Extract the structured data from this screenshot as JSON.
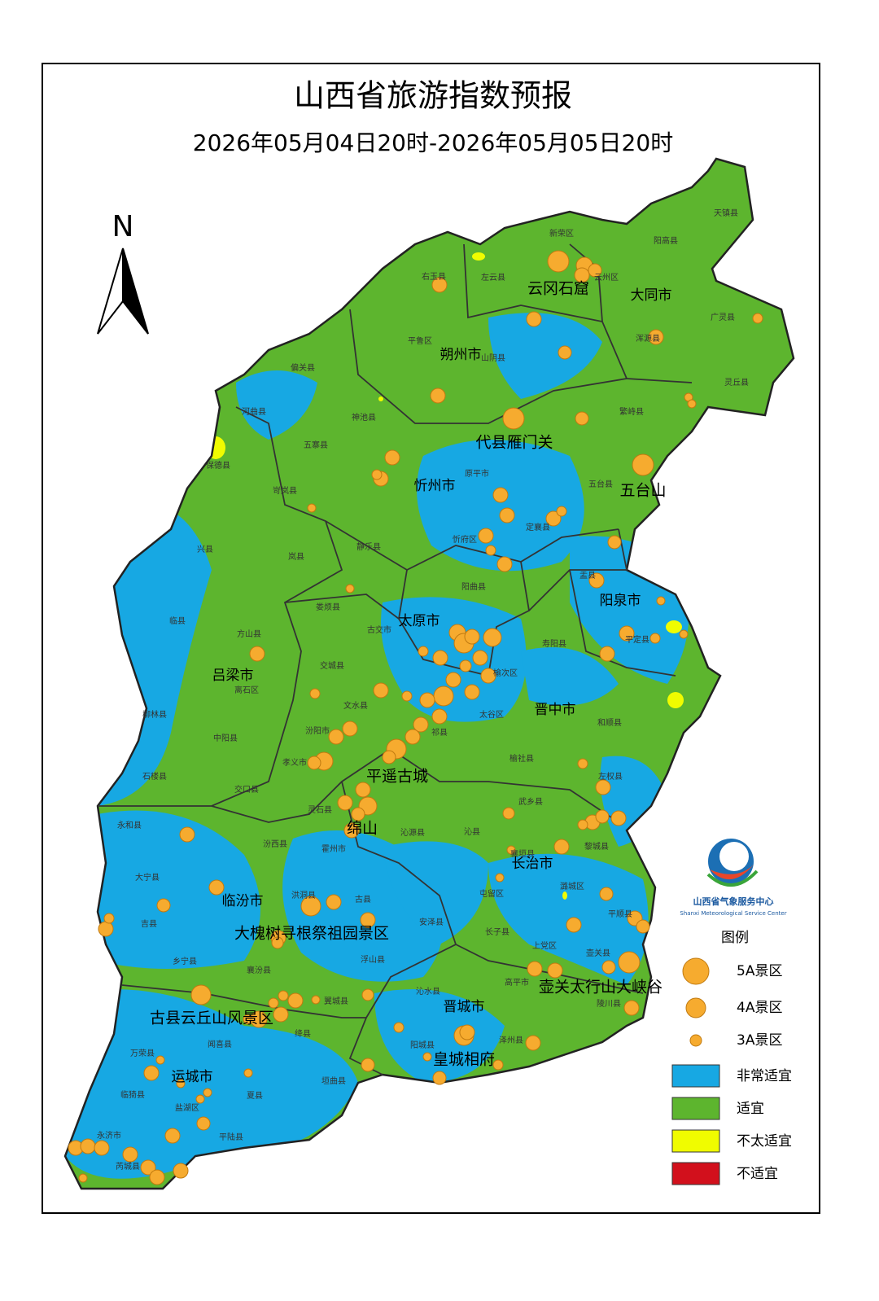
{
  "title": "山西省旅游指数预报",
  "subtitle": "2026年05月04日20时-2026年05月05日20时",
  "north": "N",
  "cities": [
    "大同市",
    "朔州市",
    "忻州市",
    "阳泉市",
    "太原市",
    "吕梁市",
    "晋中市",
    "长治市",
    "临汾市",
    "晋城市",
    "运城市"
  ],
  "scenic_areas": [
    "云冈石窟",
    "代县雁门关",
    "五台山",
    "平遥古城",
    "绵山",
    "大槐树寻根祭祖园景区",
    "古县云丘山风景区",
    "壶关太行山大峡谷",
    "皇城相府"
  ],
  "counties": [
    "天镇县",
    "阳高县",
    "新荣区",
    "右玉县",
    "左云县",
    "云州区",
    "广灵县",
    "浑源县",
    "平鲁区",
    "山阴县",
    "灵丘县",
    "偏关县",
    "河曲县",
    "神池县",
    "繁峙县",
    "保德县",
    "五寨县",
    "原平市",
    "岢岚县",
    "五台县",
    "定襄县",
    "静乐县",
    "忻府区",
    "兴县",
    "岚县",
    "阳曲县",
    "盂县",
    "临县",
    "娄烦县",
    "方山县",
    "古交市",
    "寿阳县",
    "平定县",
    "交城县",
    "离石区",
    "文水县",
    "榆次区",
    "柳林县",
    "汾阳市",
    "中阳县",
    "和顺县",
    "太谷区",
    "祁县",
    "孝义市",
    "榆社县",
    "石楼县",
    "交口县",
    "左权县",
    "灵石县",
    "武乡县",
    "永和县",
    "汾西县",
    "沁源县",
    "沁县",
    "黎城县",
    "霍州市",
    "大宁县",
    "襄垣县",
    "潞城区",
    "古县",
    "洪洞县",
    "屯留区",
    "平顺县",
    "吉县",
    "安泽县",
    "长子县",
    "乡宁县",
    "浮山县",
    "上党区",
    "壶关县",
    "襄汾县",
    "沁水县",
    "高平市",
    "陵川县",
    "翼城县",
    "阳城县",
    "泽州县",
    "万荣县",
    "绛县",
    "闻喜县",
    "临猗县",
    "垣曲县",
    "夏县",
    "盐湖区",
    "永济市",
    "平陆县",
    "芮城县"
  ],
  "logo": {
    "name": "山西省气象服务中心",
    "english": "Shanxi Meteorological Service Center"
  },
  "legend": {
    "title": "图例",
    "scenic": [
      "5A景区",
      "4A景区",
      "3A景区"
    ],
    "levels": [
      {
        "label": "非常适宜",
        "color": "#17a8e3"
      },
      {
        "label": "适宜",
        "color": "#5db52e"
      },
      {
        "label": "不太适宜",
        "color": "#f0fc00"
      },
      {
        "label": "不适宜",
        "color": "#d2101c"
      }
    ]
  }
}
